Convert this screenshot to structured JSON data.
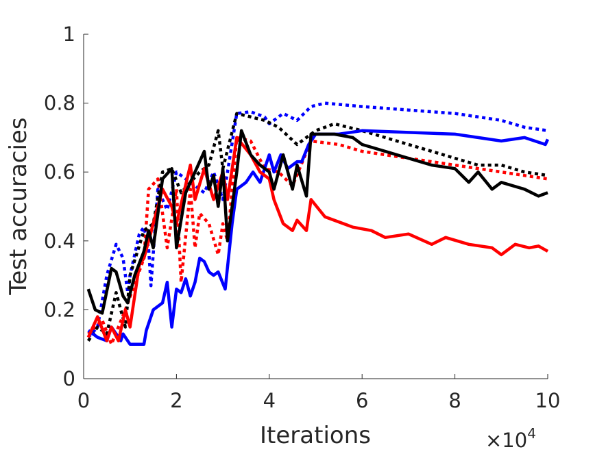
{
  "chart_data": {
    "type": "line",
    "title": "",
    "xlabel": "Iterations",
    "ylabel": "Test accuracies",
    "x_multiplier_label": {
      "base": "×10",
      "exponent": "4"
    },
    "xlim": [
      0,
      10
    ],
    "ylim": [
      0,
      1
    ],
    "xticks": [
      "0",
      "2",
      "4",
      "6",
      "8",
      "10"
    ],
    "yticks": [
      "0",
      "0.2",
      "0.4",
      "0.6",
      "0.8",
      "1"
    ],
    "grid": false,
    "legend": null,
    "series": [
      {
        "name": "blue-dotted",
        "color": "#0000ff",
        "style": "dotted",
        "x": [
          0.1,
          0.3,
          0.5,
          0.7,
          0.85,
          0.95,
          1.0,
          1.2,
          1.3,
          1.4,
          1.45,
          1.6,
          1.8,
          2.0,
          2.2,
          2.4,
          2.6,
          2.8,
          3.0,
          3.1,
          3.3,
          3.6,
          3.9,
          4.0,
          4.3,
          4.6,
          4.9,
          5.2,
          6,
          7,
          8,
          8.5,
          9,
          9.5,
          10
        ],
        "y": [
          0.12,
          0.15,
          0.3,
          0.39,
          0.35,
          0.25,
          0.3,
          0.42,
          0.44,
          0.38,
          0.27,
          0.55,
          0.49,
          0.6,
          0.58,
          0.56,
          0.54,
          0.6,
          0.52,
          0.6,
          0.77,
          0.775,
          0.76,
          0.74,
          0.77,
          0.75,
          0.79,
          0.8,
          0.79,
          0.78,
          0.77,
          0.76,
          0.75,
          0.73,
          0.72
        ]
      },
      {
        "name": "red-dotted",
        "color": "#ff0000",
        "style": "dotted",
        "x": [
          0.1,
          0.4,
          0.6,
          0.9,
          1.3,
          1.4,
          1.6,
          1.8,
          2.0,
          2.1,
          2.3,
          2.4,
          2.5,
          2.7,
          2.9,
          3.0,
          3.1,
          3.3,
          3.6,
          3.9,
          4.2,
          4.5,
          4.9,
          5.5,
          6,
          7,
          8,
          9,
          10
        ],
        "y": [
          0.13,
          0.17,
          0.1,
          0.2,
          0.35,
          0.55,
          0.58,
          0.38,
          0.55,
          0.28,
          0.55,
          0.38,
          0.48,
          0.45,
          0.36,
          0.45,
          0.4,
          0.7,
          0.69,
          0.61,
          0.6,
          0.56,
          0.69,
          0.68,
          0.66,
          0.64,
          0.62,
          0.6,
          0.58
        ]
      },
      {
        "name": "black-dotted",
        "color": "#000000",
        "style": "dotted",
        "x": [
          0.1,
          0.3,
          0.5,
          0.7,
          0.9,
          1.0,
          1.3,
          1.5,
          1.7,
          1.9,
          2.1,
          2.3,
          2.5,
          2.7,
          2.9,
          3.0,
          3.3,
          3.6,
          3.9,
          4.2,
          4.6,
          5.0,
          5.4,
          6,
          6.5,
          7,
          7.5,
          8,
          8.5,
          9,
          9.5,
          10
        ],
        "y": [
          0.11,
          0.15,
          0.13,
          0.25,
          0.15,
          0.3,
          0.43,
          0.45,
          0.6,
          0.61,
          0.54,
          0.57,
          0.6,
          0.62,
          0.72,
          0.61,
          0.77,
          0.76,
          0.75,
          0.73,
          0.68,
          0.72,
          0.74,
          0.72,
          0.7,
          0.68,
          0.66,
          0.64,
          0.62,
          0.62,
          0.6,
          0.59
        ]
      },
      {
        "name": "blue-solid",
        "color": "#0000ff",
        "style": "solid",
        "x": [
          0.1,
          0.3,
          0.5,
          0.6,
          0.8,
          0.85,
          1.0,
          1.3,
          1.35,
          1.5,
          1.7,
          1.8,
          1.9,
          2.0,
          2.1,
          2.2,
          2.3,
          2.4,
          2.5,
          2.6,
          2.7,
          2.8,
          2.9,
          3.05,
          3.2,
          3.3,
          3.5,
          3.65,
          3.8,
          3.9,
          4.0,
          4.1,
          4.25,
          4.4,
          4.6,
          4.7,
          4.85,
          5.0,
          5.5,
          6,
          7,
          8,
          8.5,
          9,
          9.5,
          9.95,
          10
        ],
        "y": [
          0.14,
          0.12,
          0.11,
          0.15,
          0.11,
          0.13,
          0.1,
          0.1,
          0.14,
          0.2,
          0.22,
          0.28,
          0.15,
          0.26,
          0.25,
          0.29,
          0.24,
          0.28,
          0.35,
          0.34,
          0.31,
          0.3,
          0.31,
          0.26,
          0.45,
          0.55,
          0.57,
          0.6,
          0.57,
          0.61,
          0.65,
          0.6,
          0.65,
          0.61,
          0.63,
          0.63,
          0.68,
          0.71,
          0.71,
          0.72,
          0.715,
          0.71,
          0.7,
          0.69,
          0.7,
          0.68,
          0.695
        ]
      },
      {
        "name": "red-solid",
        "color": "#ff0000",
        "style": "solid",
        "x": [
          0.1,
          0.3,
          0.5,
          0.6,
          0.75,
          0.9,
          1.0,
          1.2,
          1.3,
          1.4,
          1.5,
          1.7,
          1.9,
          2.0,
          2.3,
          2.4,
          2.6,
          2.8,
          3.0,
          3.1,
          3.3,
          3.6,
          3.8,
          4.0,
          4.1,
          4.3,
          4.5,
          4.6,
          4.8,
          4.9,
          5.2,
          5.8,
          6.2,
          6.5,
          7,
          7.5,
          7.8,
          8.3,
          8.8,
          9.0,
          9.3,
          9.6,
          9.8,
          10
        ],
        "y": [
          0.12,
          0.18,
          0.11,
          0.15,
          0.11,
          0.2,
          0.15,
          0.33,
          0.35,
          0.4,
          0.45,
          0.55,
          0.5,
          0.45,
          0.62,
          0.52,
          0.61,
          0.52,
          0.6,
          0.52,
          0.7,
          0.65,
          0.6,
          0.58,
          0.52,
          0.45,
          0.43,
          0.46,
          0.43,
          0.52,
          0.47,
          0.44,
          0.43,
          0.41,
          0.42,
          0.39,
          0.41,
          0.39,
          0.38,
          0.36,
          0.39,
          0.38,
          0.385,
          0.37
        ]
      },
      {
        "name": "black-solid",
        "color": "#000000",
        "style": "solid",
        "x": [
          0.1,
          0.25,
          0.4,
          0.6,
          0.7,
          0.85,
          0.95,
          1.1,
          1.3,
          1.4,
          1.5,
          1.7,
          1.9,
          2.0,
          2.2,
          2.4,
          2.6,
          2.7,
          2.8,
          2.9,
          3.0,
          3.1,
          3.3,
          3.4,
          3.6,
          3.8,
          4.0,
          4.1,
          4.3,
          4.5,
          4.6,
          4.8,
          4.9,
          5.4,
          5.8,
          6.0,
          6.5,
          7,
          7.5,
          8,
          8.3,
          8.5,
          8.8,
          9.0,
          9.5,
          9.8,
          10
        ],
        "y": [
          0.26,
          0.2,
          0.19,
          0.32,
          0.31,
          0.24,
          0.22,
          0.3,
          0.37,
          0.43,
          0.38,
          0.58,
          0.61,
          0.38,
          0.54,
          0.6,
          0.66,
          0.55,
          0.59,
          0.5,
          0.61,
          0.4,
          0.6,
          0.72,
          0.65,
          0.62,
          0.6,
          0.55,
          0.65,
          0.55,
          0.62,
          0.53,
          0.71,
          0.71,
          0.7,
          0.68,
          0.66,
          0.64,
          0.62,
          0.61,
          0.57,
          0.6,
          0.55,
          0.57,
          0.55,
          0.53,
          0.54
        ]
      }
    ]
  }
}
